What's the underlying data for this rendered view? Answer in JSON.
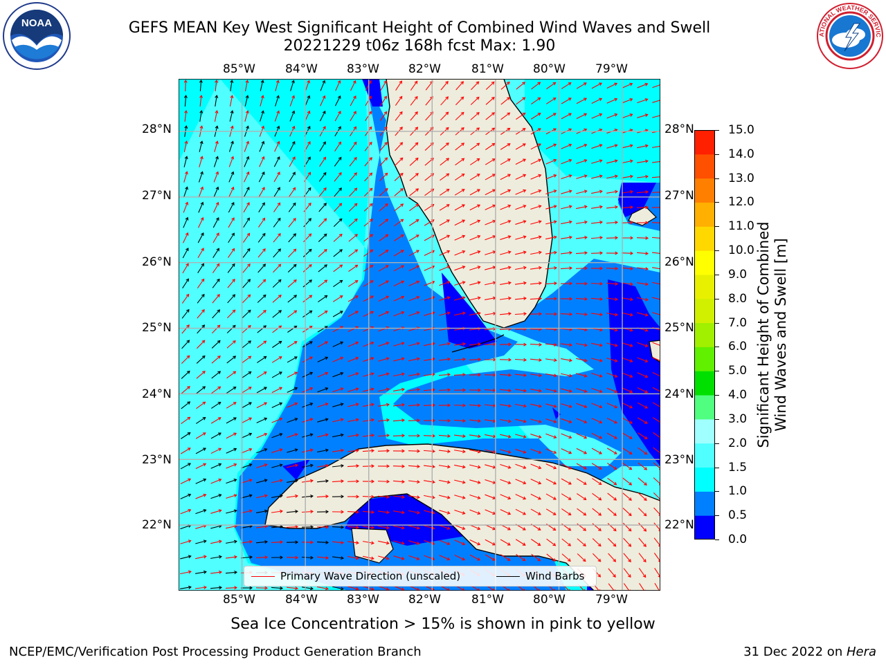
{
  "title": {
    "line1": "GEFS MEAN Key West Significant Height of Combined Wind Waves and Swell",
    "line2": "20221229 t06z 168h fcst   Max: 1.90"
  },
  "logos": {
    "noaa": {
      "icon": "noaa-seal-icon",
      "text": "NOAA",
      "ring_text": "NATIONAL OCEANIC AND ATMOSPHERIC ADMINISTRATION · U.S. DEPARTMENT OF COMMERCE"
    },
    "nws": {
      "icon": "nws-seal-icon",
      "ring_text": "NATIONAL WEATHER SERVICE"
    }
  },
  "map": {
    "lon_labels": [
      "85°W",
      "84°W",
      "83°W",
      "82°W",
      "81°W",
      "80°W",
      "79°W"
    ],
    "lon_values": [
      -85,
      -84,
      -83,
      -82,
      -81,
      -80,
      -79
    ],
    "lat_labels": [
      "28°N",
      "27°N",
      "26°N",
      "25°N",
      "24°N",
      "23°N",
      "22°N"
    ],
    "lat_values": [
      28,
      27,
      26,
      25,
      24,
      23,
      22
    ],
    "lon_range": [
      -86,
      -78.4
    ],
    "lat_range": [
      21,
      28.8
    ],
    "gridlines": true,
    "colors": {
      "land": "#eeecdc",
      "coast": "#000000",
      "grid": "#b0b0b0",
      "wave_arrow": "#ff0000",
      "wind_barb": "#000000"
    }
  },
  "legend": {
    "location": "lower-center",
    "items": [
      {
        "label": "Primary Wave Direction (unscaled)",
        "color": "#ff0000"
      },
      {
        "label": "Wind Barbs",
        "color": "#000000"
      }
    ]
  },
  "colorbar": {
    "title_line1": "Significant Height of Combined",
    "title_line2": "Wind Waves and Swell [m]",
    "tick_labels": [
      "15.0",
      "14.0",
      "13.0",
      "12.0",
      "11.0",
      "10.0",
      "9.0",
      "8.0",
      "7.0",
      "6.0",
      "5.0",
      "4.0",
      "3.0",
      "2.0",
      "1.5",
      "1.0",
      "0.5",
      "0.0"
    ],
    "bins": [
      {
        "range": [
          0.0,
          0.5
        ],
        "color": "#0000ff"
      },
      {
        "range": [
          0.5,
          1.0
        ],
        "color": "#0080ff"
      },
      {
        "range": [
          1.0,
          1.5
        ],
        "color": "#00ffff"
      },
      {
        "range": [
          1.5,
          2.0
        ],
        "color": "#50ffff"
      },
      {
        "range": [
          2.0,
          3.0
        ],
        "color": "#a0ffff"
      },
      {
        "range": [
          3.0,
          4.0
        ],
        "color": "#50ff80"
      },
      {
        "range": [
          4.0,
          5.0
        ],
        "color": "#00e000"
      },
      {
        "range": [
          5.0,
          6.0
        ],
        "color": "#60f000"
      },
      {
        "range": [
          6.0,
          7.0
        ],
        "color": "#a0f000"
      },
      {
        "range": [
          7.0,
          8.0
        ],
        "color": "#d0f000"
      },
      {
        "range": [
          8.0,
          9.0
        ],
        "color": "#e8f000"
      },
      {
        "range": [
          9.0,
          10.0
        ],
        "color": "#ffff00"
      },
      {
        "range": [
          10.0,
          11.0
        ],
        "color": "#ffd800"
      },
      {
        "range": [
          11.0,
          12.0
        ],
        "color": "#ffb000"
      },
      {
        "range": [
          12.0,
          13.0
        ],
        "color": "#ff8000"
      },
      {
        "range": [
          13.0,
          14.0
        ],
        "color": "#ff5000"
      },
      {
        "range": [
          14.0,
          15.0
        ],
        "color": "#ff2000"
      },
      {
        "range": [
          15.0,
          15.0
        ],
        "color": "#ff0000"
      }
    ]
  },
  "sea_ice_note": "Sea Ice Concentration > 15% is shown in pink to yellow",
  "footer": {
    "left": "NCEP/EMC/Verification Post Processing Product Generation Branch",
    "right_date": "31 Dec 2022 on ",
    "right_host": "Hera"
  }
}
